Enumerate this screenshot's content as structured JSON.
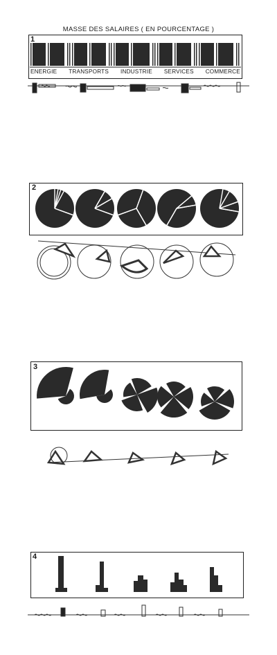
{
  "title": "MASSE DES SALAIRES   ( EN POURCENTAGE )",
  "panels": [
    {
      "number": "1"
    },
    {
      "number": "2"
    },
    {
      "number": "3"
    },
    {
      "number": "4"
    }
  ],
  "panel1_labels": [
    "ENERGIE",
    "TRANSPORTS",
    "INDUSTRIE",
    "SERVICES",
    "COMMERCE"
  ]
}
